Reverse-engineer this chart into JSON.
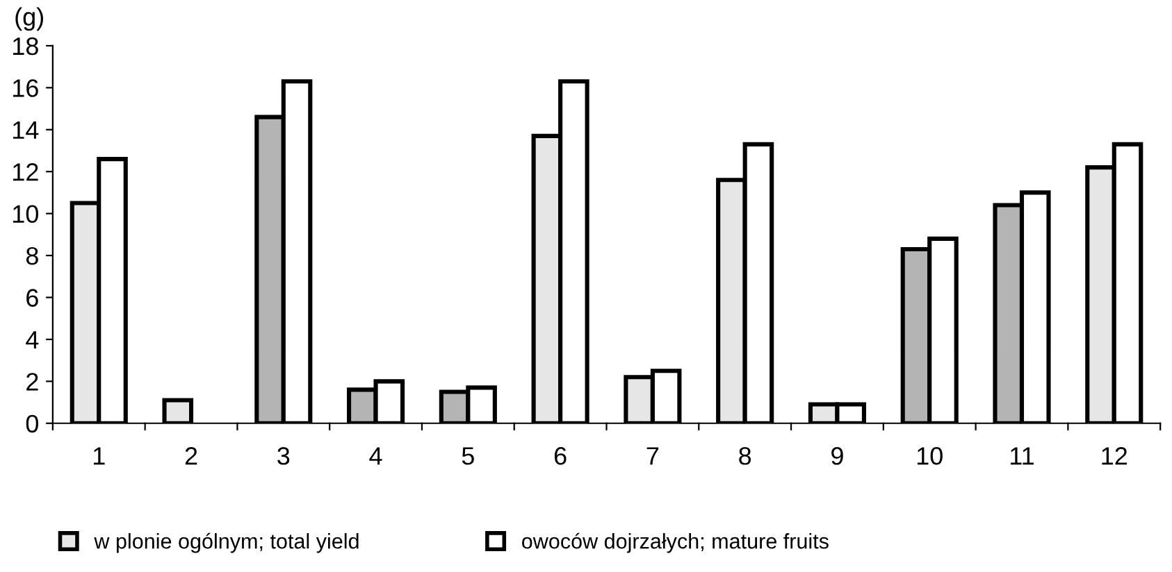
{
  "chart_data": {
    "type": "bar",
    "ylabel": "(g)",
    "categories": [
      "1",
      "2",
      "3",
      "4",
      "5",
      "6",
      "7",
      "8",
      "9",
      "10",
      "11",
      "12"
    ],
    "series": [
      {
        "name": "w plonie ogólnym; total yield",
        "color": "#e6e6e6",
        "colors": [
          "#e6e6e6",
          "#e6e6e6",
          "#b4b4b4",
          "#b4b4b4",
          "#b4b4b4",
          "#e6e6e6",
          "#e6e6e6",
          "#e6e6e6",
          "#e6e6e6",
          "#b4b4b4",
          "#b4b4b4",
          "#e6e6e6"
        ],
        "values": [
          10.5,
          1.1,
          14.6,
          1.6,
          1.5,
          13.7,
          2.2,
          11.6,
          0.9,
          8.3,
          10.4,
          12.2
        ]
      },
      {
        "name": "owoców dojrzałych; mature fruits",
        "color": "#ffffff",
        "values": [
          12.6,
          null,
          16.3,
          2.0,
          1.7,
          16.3,
          2.5,
          13.3,
          0.9,
          8.8,
          11.0,
          13.3
        ]
      }
    ],
    "ylim": [
      0,
      18
    ],
    "yticks": [
      0,
      2,
      4,
      6,
      8,
      10,
      12,
      14,
      16,
      18
    ],
    "grid": false,
    "legend": "bottom"
  }
}
